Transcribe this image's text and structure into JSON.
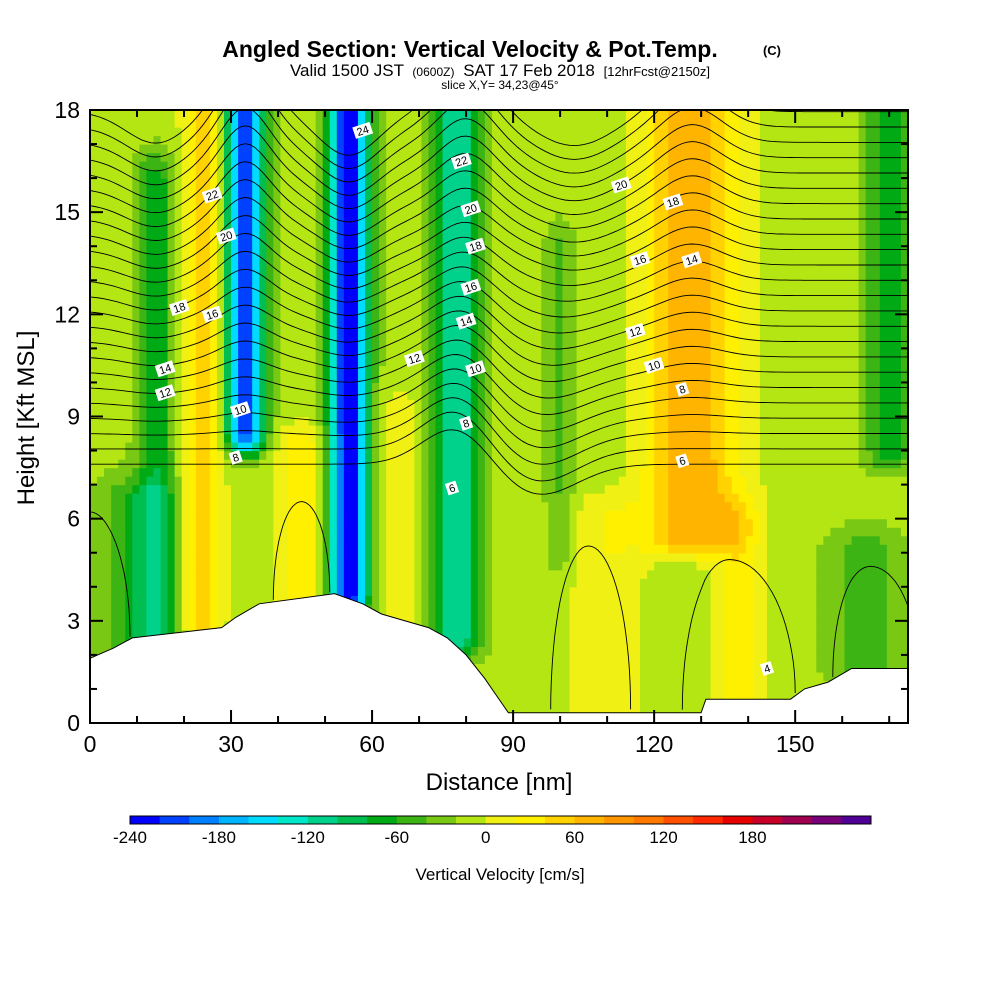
{
  "chart_data": {
    "type": "heatmap",
    "title": "Angled Section: Vertical Velocity & Pot.Temp.",
    "title_mark": "(C)",
    "subtitle_parts": [
      "Valid 1500 JST",
      "(0600Z)",
      "SAT 17 Feb 2018",
      "[12hrFcst@2150z]"
    ],
    "slice_note": "slice X,Y= 34,23@45°",
    "xlabel": "Distance [nm]",
    "ylabel": "Height [Kft MSL]",
    "xlim": [
      0,
      174
    ],
    "ylim": [
      0,
      18
    ],
    "x_ticks": [
      0,
      30,
      60,
      90,
      120,
      150
    ],
    "y_ticks": [
      0,
      3,
      6,
      9,
      12,
      15,
      18
    ],
    "grid": false,
    "colorbar": {
      "label": "Vertical Velocity [cm/s]",
      "min": -240,
      "step": 20,
      "tick_values": [
        -240,
        -180,
        -120,
        -60,
        0,
        60,
        120,
        180
      ],
      "colors": [
        "#0000ff",
        "#0040ff",
        "#0080ff",
        "#00b4ff",
        "#00dcff",
        "#00e6c8",
        "#00d28c",
        "#00be50",
        "#00aa14",
        "#3cb414",
        "#78c814",
        "#b4e614",
        "#f0f014",
        "#fff000",
        "#ffd200",
        "#ffb400",
        "#ff9600",
        "#ff7800",
        "#ff5000",
        "#ff2800",
        "#e60000",
        "#c80028",
        "#a00050",
        "#780078",
        "#500096"
      ]
    },
    "terrain_kft": [
      [
        0,
        1.9
      ],
      [
        5,
        2.2
      ],
      [
        9,
        2.5
      ],
      [
        28,
        2.8
      ],
      [
        31,
        3.1
      ],
      [
        36,
        3.5
      ],
      [
        52,
        3.8
      ],
      [
        58,
        3.5
      ],
      [
        62,
        3.2
      ],
      [
        72,
        2.8
      ],
      [
        76,
        2.5
      ],
      [
        80,
        2.0
      ],
      [
        84,
        1.3
      ],
      [
        86,
        0.9
      ],
      [
        88,
        0.5
      ],
      [
        89,
        0.3
      ],
      [
        130,
        0.3
      ],
      [
        131,
        0.7
      ],
      [
        149,
        0.7
      ],
      [
        152,
        1.0
      ],
      [
        157,
        1.2
      ],
      [
        162,
        1.6
      ],
      [
        174,
        1.6
      ]
    ],
    "updraft_bands": [
      {
        "x": 24,
        "half_width": 4,
        "top_kft": 18,
        "bottom_kft": 3.0,
        "peak_cms": 70
      },
      {
        "x": 45,
        "half_width": 5,
        "top_kft": 8,
        "bottom_kft": 3.5,
        "peak_cms": 50
      },
      {
        "x": 66,
        "half_width": 4,
        "top_kft": 9,
        "bottom_kft": 3.2,
        "peak_cms": 30
      },
      {
        "x": 110,
        "half_width": 8,
        "top_kft": 6,
        "bottom_kft": 0.3,
        "peak_cms": 30
      },
      {
        "x": 128,
        "half_width": 10,
        "top_kft": 18,
        "bottom_kft": 5.5,
        "peak_cms": 90
      },
      {
        "x": 138,
        "half_width": 5,
        "top_kft": 6,
        "bottom_kft": 0.7,
        "peak_cms": 40
      }
    ],
    "downdraft_bands": [
      {
        "x": 14,
        "half_width": 4,
        "top_kft": 16,
        "bottom_kft": 2.5,
        "peak_cms": -60
      },
      {
        "x": 33,
        "half_width": 4,
        "top_kft": 18,
        "bottom_kft": 8.5,
        "peak_cms": -200
      },
      {
        "x": 55,
        "half_width": 4,
        "top_kft": 18,
        "bottom_kft": 3.8,
        "peak_cms": -230
      },
      {
        "x": 78,
        "half_width": 5,
        "top_kft": 18,
        "bottom_kft": 2.5,
        "peak_cms": -110
      },
      {
        "x": 100,
        "half_width": 3,
        "top_kft": 14,
        "bottom_kft": 5,
        "peak_cms": -30
      },
      {
        "x": 170,
        "half_width": 5,
        "top_kft": 18,
        "bottom_kft": 8,
        "peak_cms": -60
      },
      {
        "x": 10,
        "half_width": 8,
        "top_kft": 6.5,
        "bottom_kft": 2.2,
        "peak_cms": -50
      },
      {
        "x": 165,
        "half_width": 8,
        "top_kft": 5,
        "bottom_kft": 1.6,
        "peak_cms": -40
      }
    ],
    "theta_levels": [
      4,
      6,
      8,
      10,
      12,
      14,
      16,
      18,
      20,
      22,
      24
    ],
    "theta_labels": [
      {
        "text": "24",
        "x": 58,
        "y": 17.4
      },
      {
        "text": "22",
        "x": 26,
        "y": 15.5
      },
      {
        "text": "22",
        "x": 79,
        "y": 16.5
      },
      {
        "text": "20",
        "x": 29,
        "y": 14.3
      },
      {
        "text": "20",
        "x": 81,
        "y": 15.1
      },
      {
        "text": "20",
        "x": 113,
        "y": 15.8
      },
      {
        "text": "18",
        "x": 19,
        "y": 12.2
      },
      {
        "text": "18",
        "x": 82,
        "y": 14.0
      },
      {
        "text": "18",
        "x": 124,
        "y": 15.3
      },
      {
        "text": "16",
        "x": 26,
        "y": 12.0
      },
      {
        "text": "16",
        "x": 81,
        "y": 12.8
      },
      {
        "text": "16",
        "x": 117,
        "y": 13.6
      },
      {
        "text": "14",
        "x": 16,
        "y": 10.4
      },
      {
        "text": "14",
        "x": 80,
        "y": 11.8
      },
      {
        "text": "14",
        "x": 128,
        "y": 13.6
      },
      {
        "text": "12",
        "x": 16,
        "y": 9.7
      },
      {
        "text": "12",
        "x": 69,
        "y": 10.7
      },
      {
        "text": "12",
        "x": 116,
        "y": 11.5
      },
      {
        "text": "10",
        "x": 32,
        "y": 9.2
      },
      {
        "text": "10",
        "x": 82,
        "y": 10.4
      },
      {
        "text": "10",
        "x": 120,
        "y": 10.5
      },
      {
        "text": "8",
        "x": 31,
        "y": 7.8
      },
      {
        "text": "8",
        "x": 80,
        "y": 8.8
      },
      {
        "text": "8",
        "x": 126,
        "y": 9.8
      },
      {
        "text": "6",
        "x": 77,
        "y": 6.9
      },
      {
        "text": "6",
        "x": 126,
        "y": 7.7
      },
      {
        "text": "4",
        "x": 144,
        "y": 1.6
      }
    ]
  }
}
